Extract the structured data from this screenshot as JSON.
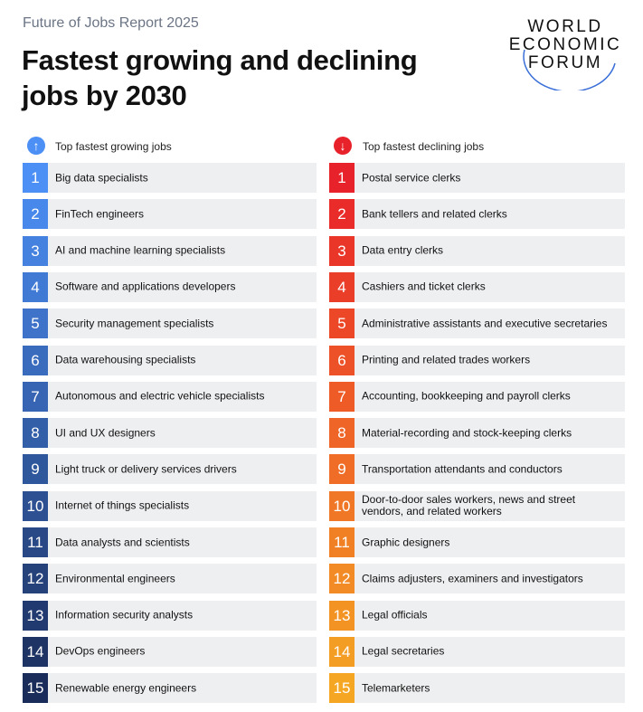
{
  "header": {
    "subtitle": "Future of Jobs Report 2025",
    "title": "Fastest growing and declining jobs by 2030"
  },
  "logo": [
    "WORLD",
    "ECONOMIC",
    "FORUM"
  ],
  "growing": {
    "heading": "Top fastest growing jobs",
    "items": [
      {
        "rank": 1,
        "label": "Big data specialists"
      },
      {
        "rank": 2,
        "label": "FinTech engineers"
      },
      {
        "rank": 3,
        "label": "AI and machine learning specialists"
      },
      {
        "rank": 4,
        "label": "Software and applications developers"
      },
      {
        "rank": 5,
        "label": "Security management specialists"
      },
      {
        "rank": 6,
        "label": "Data warehousing specialists"
      },
      {
        "rank": 7,
        "label": "Autonomous and electric vehicle specialists"
      },
      {
        "rank": 8,
        "label": "UI and UX designers"
      },
      {
        "rank": 9,
        "label": "Light truck or delivery services drivers"
      },
      {
        "rank": 10,
        "label": "Internet of things specialists"
      },
      {
        "rank": 11,
        "label": "Data analysts and scientists"
      },
      {
        "rank": 12,
        "label": "Environmental engineers"
      },
      {
        "rank": 13,
        "label": "Information security analysts"
      },
      {
        "rank": 14,
        "label": "DevOps engineers"
      },
      {
        "rank": 15,
        "label": "Renewable energy engineers"
      }
    ]
  },
  "declining": {
    "heading": "Top fastest declining jobs",
    "items": [
      {
        "rank": 1,
        "label": "Postal service clerks"
      },
      {
        "rank": 2,
        "label": "Bank tellers and related clerks"
      },
      {
        "rank": 3,
        "label": "Data entry clerks"
      },
      {
        "rank": 4,
        "label": "Cashiers and ticket clerks"
      },
      {
        "rank": 5,
        "label": "Administrative assistants and executive secretaries"
      },
      {
        "rank": 6,
        "label": "Printing and related trades workers"
      },
      {
        "rank": 7,
        "label": "Accounting, bookkeeping and payroll clerks"
      },
      {
        "rank": 8,
        "label": "Material-recording and stock-keeping clerks"
      },
      {
        "rank": 9,
        "label": "Transportation attendants and conductors"
      },
      {
        "rank": 10,
        "label": "Door-to-door sales workers, news and street vendors, and related workers"
      },
      {
        "rank": 11,
        "label": "Graphic designers"
      },
      {
        "rank": 12,
        "label": "Claims adjusters, examiners and investigators"
      },
      {
        "rank": 13,
        "label": "Legal officials"
      },
      {
        "rank": 14,
        "label": "Legal secretaries"
      },
      {
        "rank": 15,
        "label": "Telemarketers"
      }
    ]
  }
}
